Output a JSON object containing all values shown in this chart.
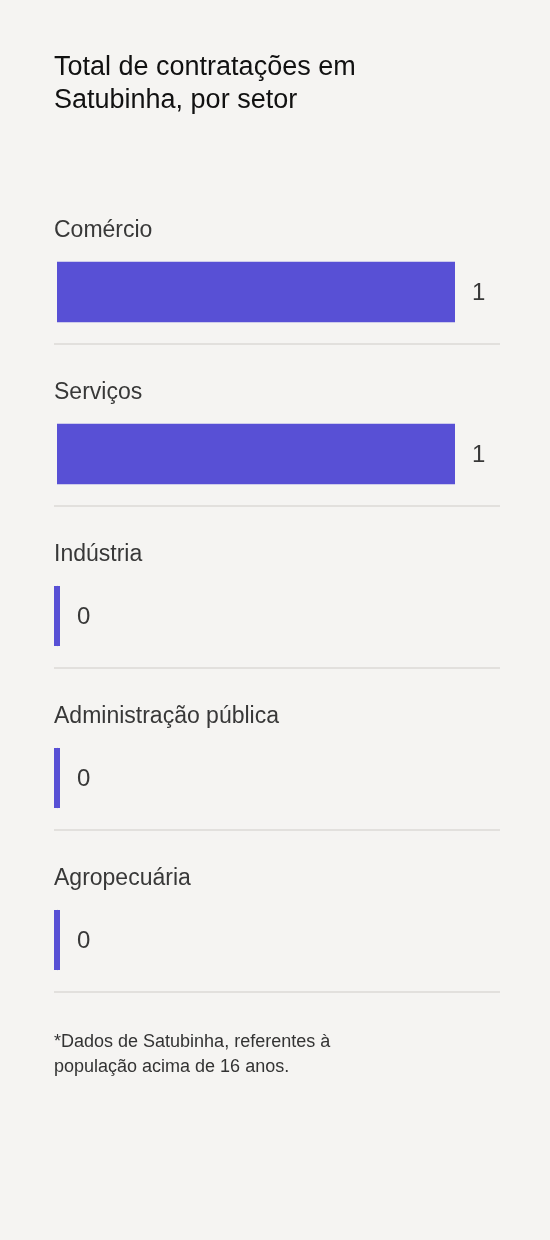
{
  "chart_data": {
    "type": "bar",
    "orientation": "horizontal",
    "title": "Total de contratações em Satubinha, por setor",
    "categories": [
      "Comércio",
      "Serviços",
      "Indústria",
      "Administração pública",
      "Agropecuária"
    ],
    "values": [
      1,
      1,
      0,
      0,
      0
    ],
    "color": "#5850d5",
    "data_labels": true,
    "grid": "y",
    "annotations": [
      "*Dados de Satubinha, referentes à população acima de 16 anos."
    ]
  }
}
